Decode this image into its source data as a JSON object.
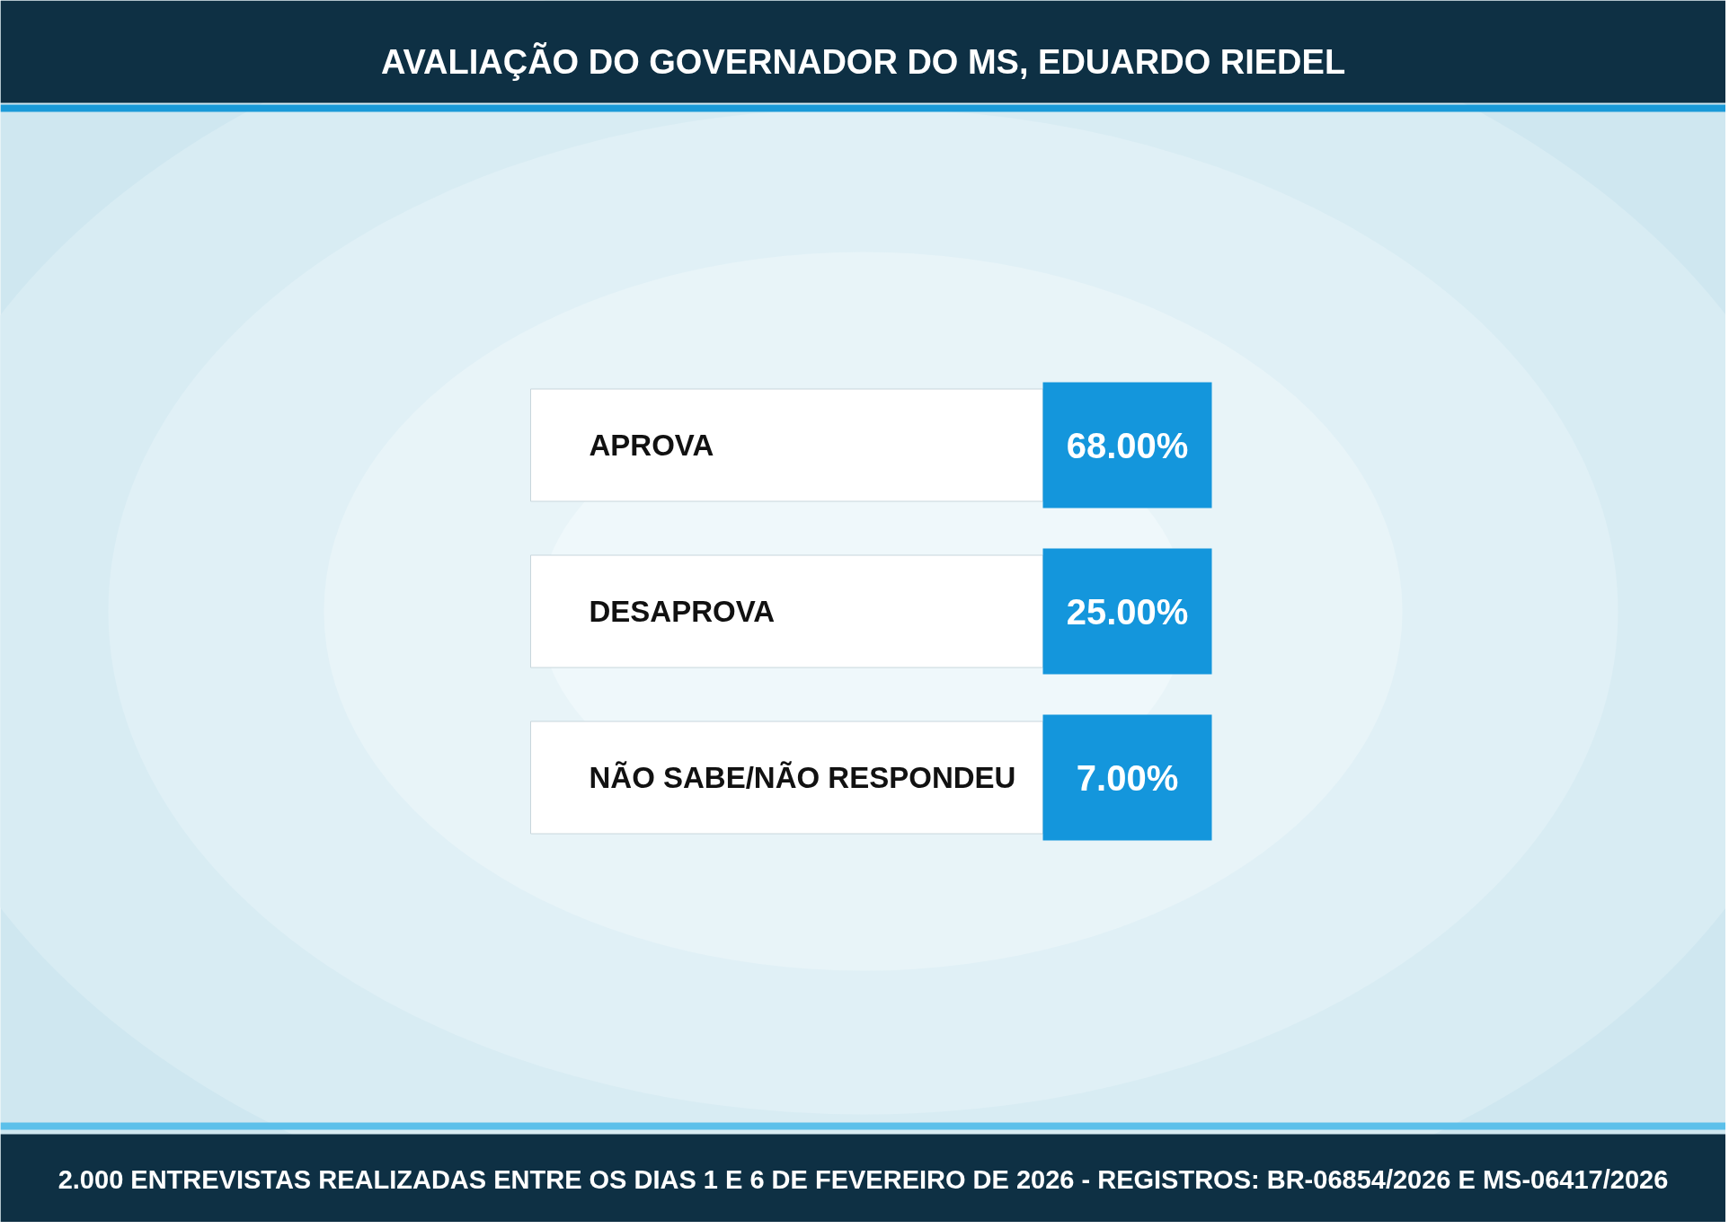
{
  "chart_data": {
    "type": "other",
    "title": "AVALIAÇÃO DO GOVERNADOR DO MS, EDUARDO RIEDEL",
    "categories": [
      "APROVA",
      "DESAPROVA",
      "NÃO SABE/NÃO RESPONDEU"
    ],
    "values": [
      68.0,
      25.0,
      7.0
    ],
    "value_labels": [
      "68.00%",
      "25.00%",
      "7.00%"
    ],
    "color": "#1496dc",
    "annotations": [
      "2.000 ENTREVISTAS REALIZADAS ENTRE OS DIAS 1 E 6 DE FEVEREIRO DE 2026 - REGISTROS: BR-06854/2026 E MS-06417/2026"
    ]
  }
}
